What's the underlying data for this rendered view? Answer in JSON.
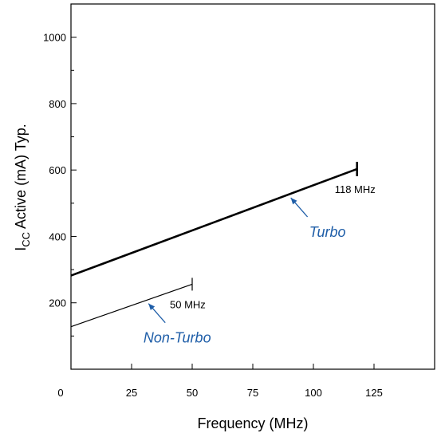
{
  "chart_data": {
    "type": "line",
    "xlabel": "Frequency (MHz)",
    "ylabel": {
      "main": "I",
      "subscript": "CC",
      "rest": " Active (mA) Typ."
    },
    "xlim": [
      0,
      150
    ],
    "ylim": [
      0,
      1100
    ],
    "x_ticks": [
      0,
      25,
      50,
      75,
      100,
      125
    ],
    "y_ticks": [
      200,
      400,
      600,
      800,
      1000
    ],
    "grid": false,
    "series": [
      {
        "name": "Turbo",
        "x": [
          0,
          118
        ],
        "y": [
          282,
          603
        ],
        "end_label": "118 MHz",
        "label_color": "#1f5ea8",
        "line_style": "thick"
      },
      {
        "name": "Non-Turbo",
        "x": [
          0,
          50
        ],
        "y": [
          128,
          256
        ],
        "end_label": "50 MHz",
        "label_color": "#1f5ea8",
        "line_style": "thin"
      }
    ],
    "annotation_color": "#1f5ea8"
  }
}
